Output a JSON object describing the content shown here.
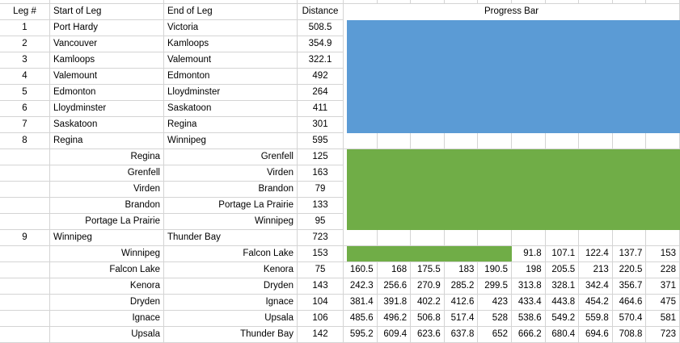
{
  "colors": {
    "blue": "#5B9BD5",
    "green": "#70AD47",
    "gridline": "#D4D4D4",
    "text": "#000000",
    "background": "#FFFFFF"
  },
  "table": {
    "headers": {
      "leg": "Leg #",
      "start": "Start of Leg",
      "end": "End of Leg",
      "distance": "Distance",
      "progress": "Progress Bar"
    },
    "rows": [
      {
        "leg": "1",
        "start": "Port Hardy",
        "end": "Victoria",
        "distance": "508.5",
        "sub": false,
        "progress": {
          "type": "block",
          "color": "blue"
        }
      },
      {
        "leg": "2",
        "start": "Vancouver",
        "end": "Kamloops",
        "distance": "354.9",
        "sub": false,
        "progress": {
          "type": "block",
          "color": "blue"
        }
      },
      {
        "leg": "3",
        "start": "Kamloops",
        "end": "Valemount",
        "distance": "322.1",
        "sub": false,
        "progress": {
          "type": "block",
          "color": "blue"
        }
      },
      {
        "leg": "4",
        "start": "Valemount",
        "end": "Edmonton",
        "distance": "492",
        "sub": false,
        "progress": {
          "type": "block",
          "color": "blue"
        }
      },
      {
        "leg": "5",
        "start": "Edmonton",
        "end": "Lloydminster",
        "distance": "264",
        "sub": false,
        "progress": {
          "type": "block",
          "color": "blue"
        }
      },
      {
        "leg": "6",
        "start": "Lloydminster",
        "end": "Saskatoon",
        "distance": "411",
        "sub": false,
        "progress": {
          "type": "block",
          "color": "blue"
        }
      },
      {
        "leg": "7",
        "start": "Saskatoon",
        "end": "Regina",
        "distance": "301",
        "sub": false,
        "progress": {
          "type": "block",
          "color": "blue"
        }
      },
      {
        "leg": "8",
        "start": "Regina",
        "end": "Winnipeg",
        "distance": "595",
        "sub": false,
        "progress": {
          "type": "grid"
        }
      },
      {
        "leg": "",
        "start": "Regina",
        "end": "Grenfell",
        "distance": "125",
        "sub": true,
        "progress": {
          "type": "block",
          "color": "green"
        }
      },
      {
        "leg": "",
        "start": "Grenfell",
        "end": "Virden",
        "distance": "163",
        "sub": true,
        "progress": {
          "type": "block",
          "color": "green"
        }
      },
      {
        "leg": "",
        "start": "Virden",
        "end": "Brandon",
        "distance": "79",
        "sub": true,
        "progress": {
          "type": "block",
          "color": "green"
        }
      },
      {
        "leg": "",
        "start": "Brandon",
        "end": "Portage La Prairie",
        "distance": "133",
        "sub": true,
        "progress": {
          "type": "block",
          "color": "green"
        }
      },
      {
        "leg": "",
        "start": "Portage La Prairie",
        "end": "Winnipeg",
        "distance": "95",
        "sub": true,
        "progress": {
          "type": "block",
          "color": "green"
        }
      },
      {
        "leg": "9",
        "start": "Winnipeg",
        "end": "Thunder Bay",
        "distance": "723",
        "sub": false,
        "progress": {
          "type": "grid"
        }
      },
      {
        "leg": "",
        "start": "Winnipeg",
        "end": "Falcon Lake",
        "distance": "153",
        "sub": true,
        "progress": {
          "type": "numbers",
          "bar_cols": 5,
          "bar_color": "green",
          "values": [
            "",
            "",
            "",
            "",
            "",
            "91.8",
            "107.1",
            "122.4",
            "137.7",
            "153"
          ]
        }
      },
      {
        "leg": "",
        "start": "Falcon Lake",
        "end": "Kenora",
        "distance": "75",
        "sub": true,
        "progress": {
          "type": "numbers",
          "values": [
            "160.5",
            "168",
            "175.5",
            "183",
            "190.5",
            "198",
            "205.5",
            "213",
            "220.5",
            "228"
          ]
        }
      },
      {
        "leg": "",
        "start": "Kenora",
        "end": "Dryden",
        "distance": "143",
        "sub": true,
        "progress": {
          "type": "numbers",
          "values": [
            "242.3",
            "256.6",
            "270.9",
            "285.2",
            "299.5",
            "313.8",
            "328.1",
            "342.4",
            "356.7",
            "371"
          ]
        }
      },
      {
        "leg": "",
        "start": "Dryden",
        "end": "Ignace",
        "distance": "104",
        "sub": true,
        "progress": {
          "type": "numbers",
          "values": [
            "381.4",
            "391.8",
            "402.2",
            "412.6",
            "423",
            "433.4",
            "443.8",
            "454.2",
            "464.6",
            "475"
          ]
        }
      },
      {
        "leg": "",
        "start": "Ignace",
        "end": "Upsala",
        "distance": "106",
        "sub": true,
        "progress": {
          "type": "numbers",
          "values": [
            "485.6",
            "496.2",
            "506.8",
            "517.4",
            "528",
            "538.6",
            "549.2",
            "559.8",
            "570.4",
            "581"
          ]
        }
      },
      {
        "leg": "",
        "start": "Upsala",
        "end": "Thunder Bay",
        "distance": "142",
        "sub": true,
        "progress": {
          "type": "numbers",
          "values": [
            "595.2",
            "609.4",
            "623.6",
            "637.8",
            "652",
            "666.2",
            "680.4",
            "694.6",
            "708.8",
            "723"
          ]
        }
      }
    ]
  }
}
